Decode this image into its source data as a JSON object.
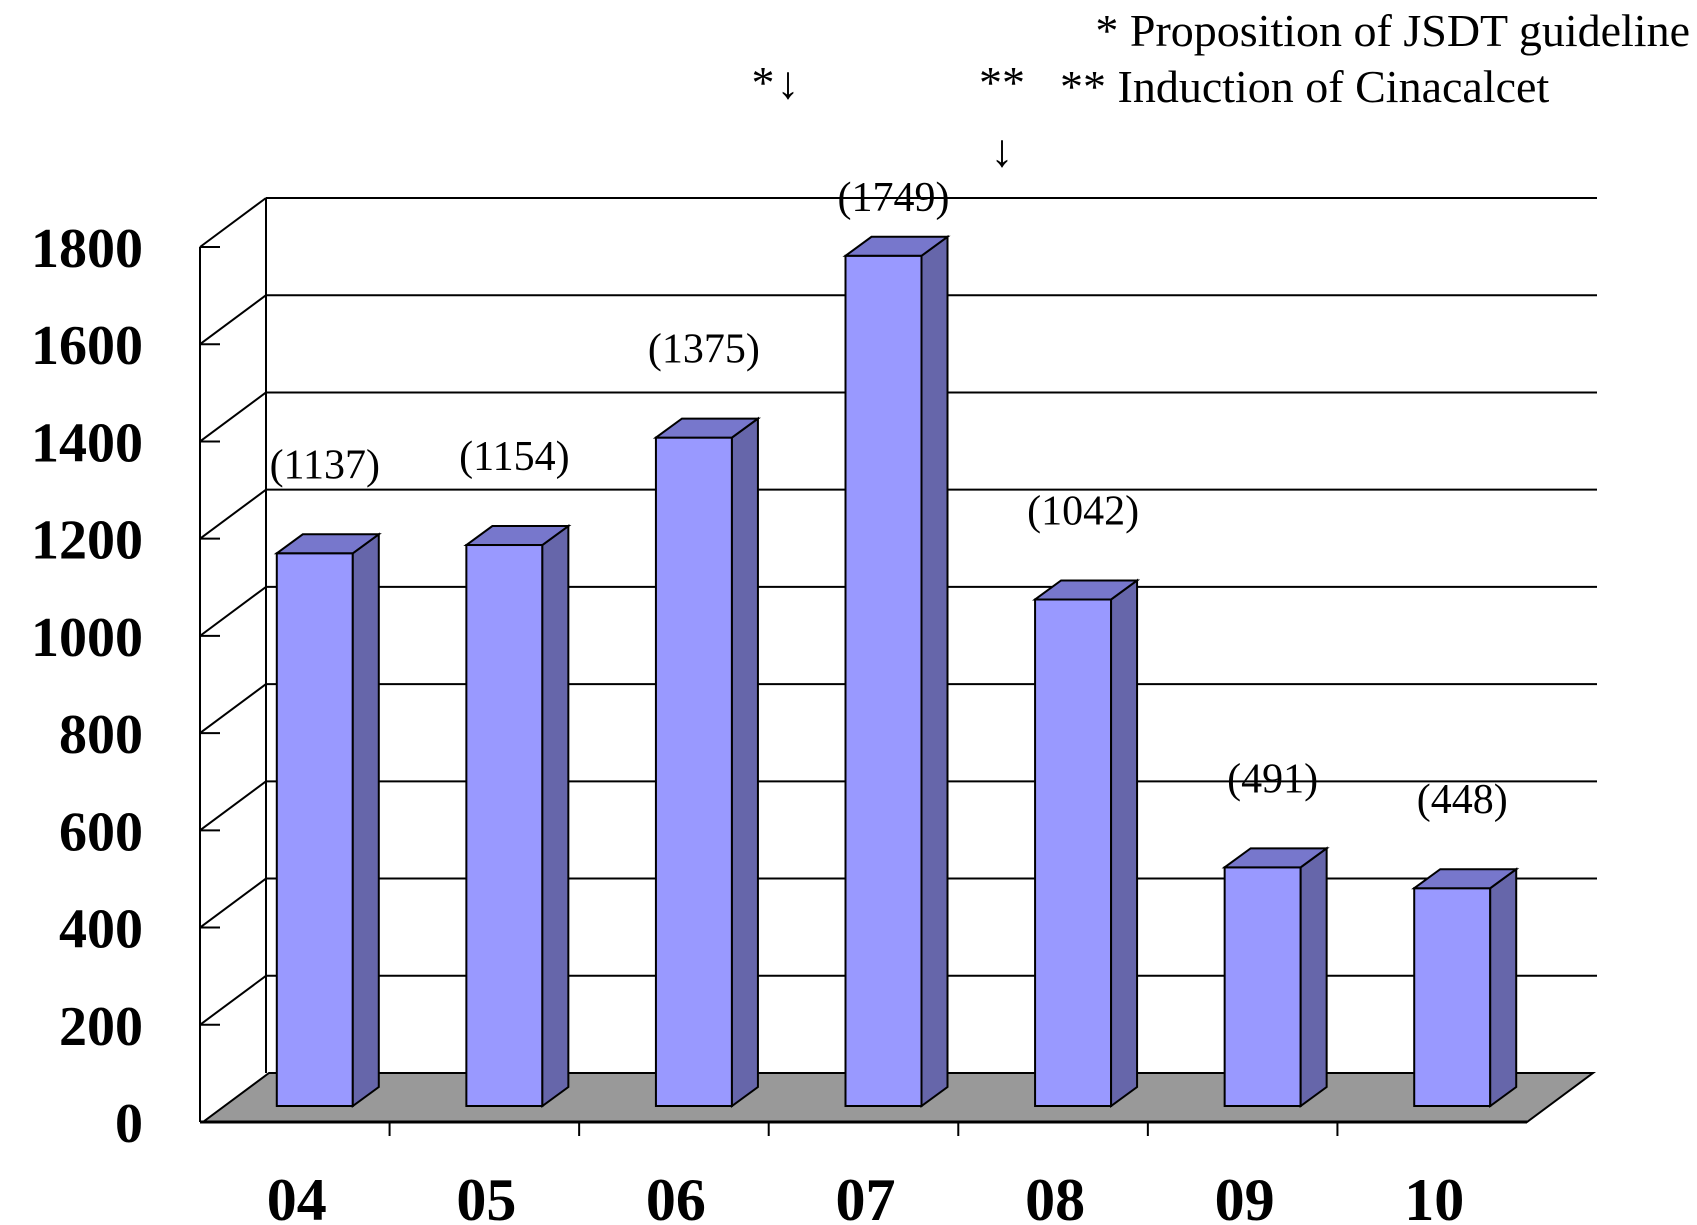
{
  "chart_data": {
    "type": "bar",
    "categories": [
      "04",
      "05",
      "06",
      "07",
      "08",
      "09",
      "10"
    ],
    "values": [
      1137,
      1154,
      1375,
      1749,
      1042,
      491,
      448
    ],
    "data_labels": [
      "(1137)",
      "(1154)",
      "(1375)",
      "(1749)",
      "(1042)",
      "(491)",
      "(448)"
    ],
    "yticks": [
      "0",
      "200",
      "400",
      "600",
      "800",
      "1000",
      "1200",
      "1400",
      "1600",
      "1800"
    ],
    "ylim": [
      0,
      1800
    ],
    "grid": true,
    "style": "3d-column",
    "annotations": [
      {
        "marker": "*",
        "text": "* Proposition of JSDT guideline",
        "between": [
          "06",
          "07"
        ]
      },
      {
        "marker": "**",
        "text": "** Induction of Cinacalcet",
        "between": [
          "07",
          "08"
        ]
      }
    ],
    "colors": {
      "bar_front": "#9999ff",
      "bar_side": "#6666aa",
      "bar_top": "#7777cc",
      "floor": "#999999"
    }
  }
}
